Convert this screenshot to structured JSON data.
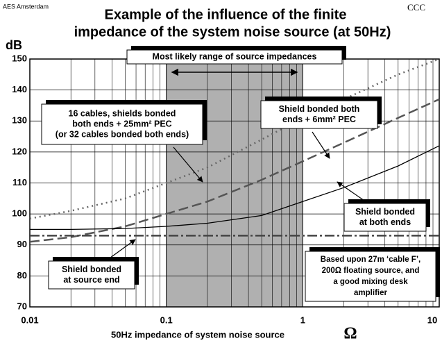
{
  "chart_data": {
    "type": "line",
    "header_left": "AES Amsterdam",
    "header_right": "CCC",
    "title": [
      "Example of the influence of the finite",
      "impedance of the system noise source  (at 50Hz)"
    ],
    "y_label": "dB",
    "x_label": "50Hz impedance of system noise source",
    "x_unit": "Ω",
    "log_x": true,
    "grid": true,
    "shaded_range": [
      0.1,
      1
    ],
    "x": [
      0.01,
      0.02,
      0.05,
      0.1,
      0.2,
      0.5,
      1,
      2,
      5,
      10
    ],
    "series": [
      {
        "name": "16 cables, shields bonded both ends + 25mm² PEC",
        "color": "#666666",
        "style": "dotted",
        "values": [
          98.5,
          101,
          105,
          110,
          115,
          124,
          131,
          137,
          145,
          150
        ]
      },
      {
        "name": "Shield bonded both ends + 6mm² PEC",
        "color": "#555555",
        "style": "dashed",
        "values": [
          91,
          92.5,
          96,
          100,
          104,
          111,
          117,
          123,
          131,
          137
        ]
      },
      {
        "name": "Shield bonded at both ends",
        "color": "#000000",
        "style": "solid",
        "values": [
          95,
          95,
          95.3,
          96,
          97,
          99.5,
          104,
          108.5,
          115.5,
          122
        ]
      },
      {
        "name": "Shield bonded at source end",
        "color": "#444444",
        "style": "dashdot",
        "values": [
          93,
          93,
          93,
          93,
          93,
          93,
          93,
          93,
          93,
          93
        ]
      }
    ],
    "xlim": [
      0.01,
      10
    ],
    "xticks": [
      0.01,
      0.1,
      1,
      10
    ],
    "ylim": [
      70,
      150
    ],
    "yticks": [
      70,
      80,
      90,
      100,
      110,
      120,
      130,
      140,
      150
    ],
    "annotations": [
      {
        "lines": [
          "Most likely range of source impedances"
        ]
      },
      {
        "lines": [
          "16 cables, shields bonded",
          "both ends + 25mm² PEC",
          "(or 32 cables bonded both ends)"
        ]
      },
      {
        "lines": [
          "Shield bonded both",
          "ends + 6mm² PEC"
        ]
      },
      {
        "lines": [
          "Shield bonded",
          "at both ends"
        ]
      },
      {
        "lines": [
          "Shield bonded",
          "at source end"
        ]
      },
      {
        "lines": [
          "Based upon 27m ‘cable F’,",
          "200Ω floating source, and",
          "a good mixing desk",
          "amplifier"
        ]
      }
    ]
  }
}
